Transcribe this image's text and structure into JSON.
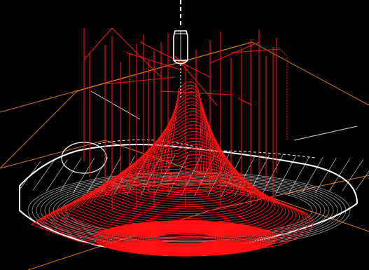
{
  "viewport": {
    "background": "#000000",
    "colors": {
      "stock_grid": "#e07800",
      "mesh": "#ffffff",
      "toolpath": "#ff1010",
      "tool": "#ffffff"
    }
  },
  "icons": {
    "tool": "end-mill-tool-icon"
  }
}
